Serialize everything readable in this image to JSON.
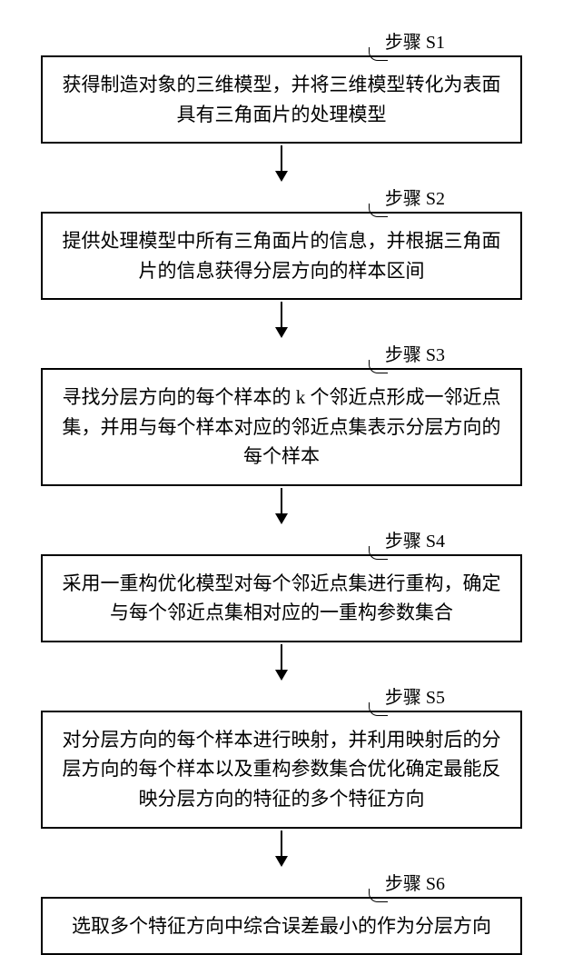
{
  "flowchart": {
    "type": "flowchart",
    "direction": "vertical",
    "box_border_color": "#000000",
    "box_border_width": 2,
    "box_background": "#ffffff",
    "text_color": "#000000",
    "font_family": "SimSun",
    "box_fontsize": 21,
    "label_fontsize": 20,
    "arrow_color": "#000000",
    "arrow_line_width": 2,
    "arrow_head_size": 12,
    "steps": [
      {
        "id": "S1",
        "label": "步骤 S1",
        "text": "获得制造对象的三维模型，并将三维模型转化为表面具有三角面片的处理模型"
      },
      {
        "id": "S2",
        "label": "步骤 S2",
        "text": "提供处理模型中所有三角面片的信息，并根据三角面片的信息获得分层方向的样本区间"
      },
      {
        "id": "S3",
        "label": "步骤 S3",
        "text": "寻找分层方向的每个样本的 k 个邻近点形成一邻近点集，并用与每个样本对应的邻近点集表示分层方向的每个样本"
      },
      {
        "id": "S4",
        "label": "步骤 S4",
        "text": "采用一重构优化模型对每个邻近点集进行重构，确定与每个邻近点集相对应的一重构参数集合"
      },
      {
        "id": "S5",
        "label": "步骤 S5",
        "text": "对分层方向的每个样本进行映射，并利用映射后的分层方向的每个样本以及重构参数集合优化确定最能反映分层方向的特征的多个特征方向"
      },
      {
        "id": "S6",
        "label": "步骤 S6",
        "text": "选取多个特征方向中综合误差最小的作为分层方向"
      }
    ]
  }
}
